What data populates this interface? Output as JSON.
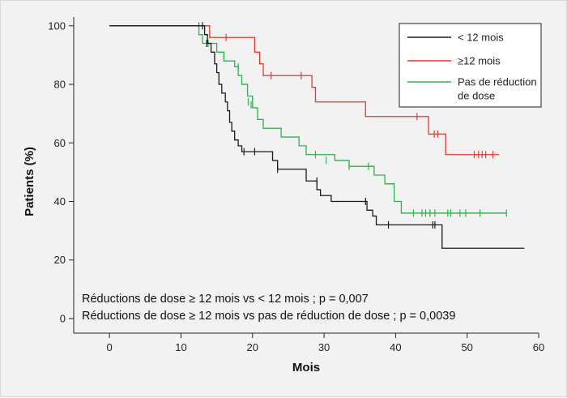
{
  "chart_data": {
    "type": "line",
    "title": "",
    "xlabel": "Mois",
    "ylabel": "Patients (%)",
    "xlim": [
      -5,
      60
    ],
    "ylim": [
      -5,
      103
    ],
    "x_ticks": [
      0,
      10,
      20,
      30,
      40,
      50,
      60
    ],
    "y_ticks": [
      0,
      20,
      40,
      60,
      80,
      100
    ],
    "grid": false,
    "legend_position": "top-right",
    "annotations": [
      "Réductions de dose ≥ 12 mois vs < 12 mois ; p = 0,007",
      "Réductions de dose ≥ 12 mois vs pas de réduction de dose ; p = 0,0039"
    ],
    "series": [
      {
        "name": "< 12 mois",
        "color": "#1a1a1a",
        "steps": [
          [
            0,
            100
          ],
          [
            13,
            100
          ],
          [
            13.3,
            97
          ],
          [
            13.7,
            94
          ],
          [
            14.2,
            91
          ],
          [
            14.7,
            87
          ],
          [
            15.0,
            84
          ],
          [
            15.3,
            80
          ],
          [
            15.7,
            77
          ],
          [
            16.2,
            74
          ],
          [
            16.5,
            71
          ],
          [
            16.8,
            67
          ],
          [
            17.1,
            64
          ],
          [
            17.5,
            61
          ],
          [
            18.0,
            59
          ],
          [
            18.5,
            57
          ],
          [
            22.5,
            57
          ],
          [
            22.8,
            54
          ],
          [
            23.5,
            51
          ],
          [
            26.0,
            51
          ],
          [
            27.5,
            47
          ],
          [
            29.0,
            44
          ],
          [
            29.5,
            42
          ],
          [
            31.0,
            40
          ],
          [
            35.0,
            40
          ],
          [
            36.0,
            37
          ],
          [
            36.8,
            35
          ],
          [
            37.3,
            32
          ],
          [
            46.5,
            32
          ],
          [
            46.5,
            24
          ],
          [
            58,
            24
          ]
        ],
        "censors": [
          [
            13.0,
            100
          ],
          [
            13.6,
            94
          ],
          [
            18.8,
            57
          ],
          [
            20.3,
            57
          ],
          [
            23.5,
            51
          ],
          [
            29.0,
            47
          ],
          [
            35.8,
            40
          ],
          [
            39.0,
            32
          ],
          [
            45.2,
            32
          ],
          [
            45.5,
            32
          ]
        ]
      },
      {
        "name": "≥12 mois",
        "color": "#e23a2e",
        "steps": [
          [
            0,
            100
          ],
          [
            13.5,
            100
          ],
          [
            14.0,
            96
          ],
          [
            19.0,
            96
          ],
          [
            20.3,
            91
          ],
          [
            21.0,
            87
          ],
          [
            21.5,
            83
          ],
          [
            27.5,
            83
          ],
          [
            28.3,
            79
          ],
          [
            28.8,
            74
          ],
          [
            35.5,
            74
          ],
          [
            35.8,
            69
          ],
          [
            44.0,
            69
          ],
          [
            44.6,
            63
          ],
          [
            46.8,
            63
          ],
          [
            47.0,
            56
          ],
          [
            54.5,
            56
          ]
        ],
        "censors": [
          [
            12.5,
            100
          ],
          [
            16.3,
            96
          ],
          [
            22.6,
            83
          ],
          [
            26.8,
            83
          ],
          [
            43.0,
            69
          ],
          [
            45.4,
            63
          ],
          [
            45.9,
            63
          ],
          [
            51.0,
            56
          ],
          [
            51.6,
            56
          ],
          [
            52.1,
            56
          ],
          [
            52.6,
            56
          ],
          [
            53.6,
            56
          ]
        ]
      },
      {
        "name": "Pas de réduction de dose",
        "color": "#2bb34a",
        "steps": [
          [
            0,
            100
          ],
          [
            12.0,
            100
          ],
          [
            12.5,
            97
          ],
          [
            13.0,
            94
          ],
          [
            15.0,
            91
          ],
          [
            16.0,
            88
          ],
          [
            17.5,
            86
          ],
          [
            18.0,
            83
          ],
          [
            18.5,
            80
          ],
          [
            19.3,
            76
          ],
          [
            20.0,
            72
          ],
          [
            20.7,
            68
          ],
          [
            21.5,
            65
          ],
          [
            23.5,
            65
          ],
          [
            24.0,
            62
          ],
          [
            26.5,
            59
          ],
          [
            27.5,
            56
          ],
          [
            31.0,
            56
          ],
          [
            31.5,
            54
          ],
          [
            33.5,
            52
          ],
          [
            36.5,
            52
          ],
          [
            37.0,
            49
          ],
          [
            38.5,
            46
          ],
          [
            39.5,
            46
          ],
          [
            39.8,
            40
          ],
          [
            40.8,
            36
          ],
          [
            55.5,
            36
          ]
        ],
        "censors": [
          [
            13.8,
            94
          ],
          [
            16.0,
            89
          ],
          [
            18.0,
            86
          ],
          [
            19.4,
            74
          ],
          [
            19.8,
            73
          ],
          [
            28.8,
            56
          ],
          [
            30.3,
            54
          ],
          [
            33.5,
            52
          ],
          [
            36.2,
            52
          ],
          [
            42.5,
            36
          ],
          [
            43.7,
            36
          ],
          [
            44.2,
            36
          ],
          [
            44.8,
            36
          ],
          [
            45.5,
            36
          ],
          [
            47.3,
            36
          ],
          [
            47.7,
            36
          ],
          [
            49.0,
            36
          ],
          [
            49.8,
            36
          ],
          [
            51.8,
            36
          ],
          [
            55.5,
            36
          ]
        ]
      }
    ]
  }
}
